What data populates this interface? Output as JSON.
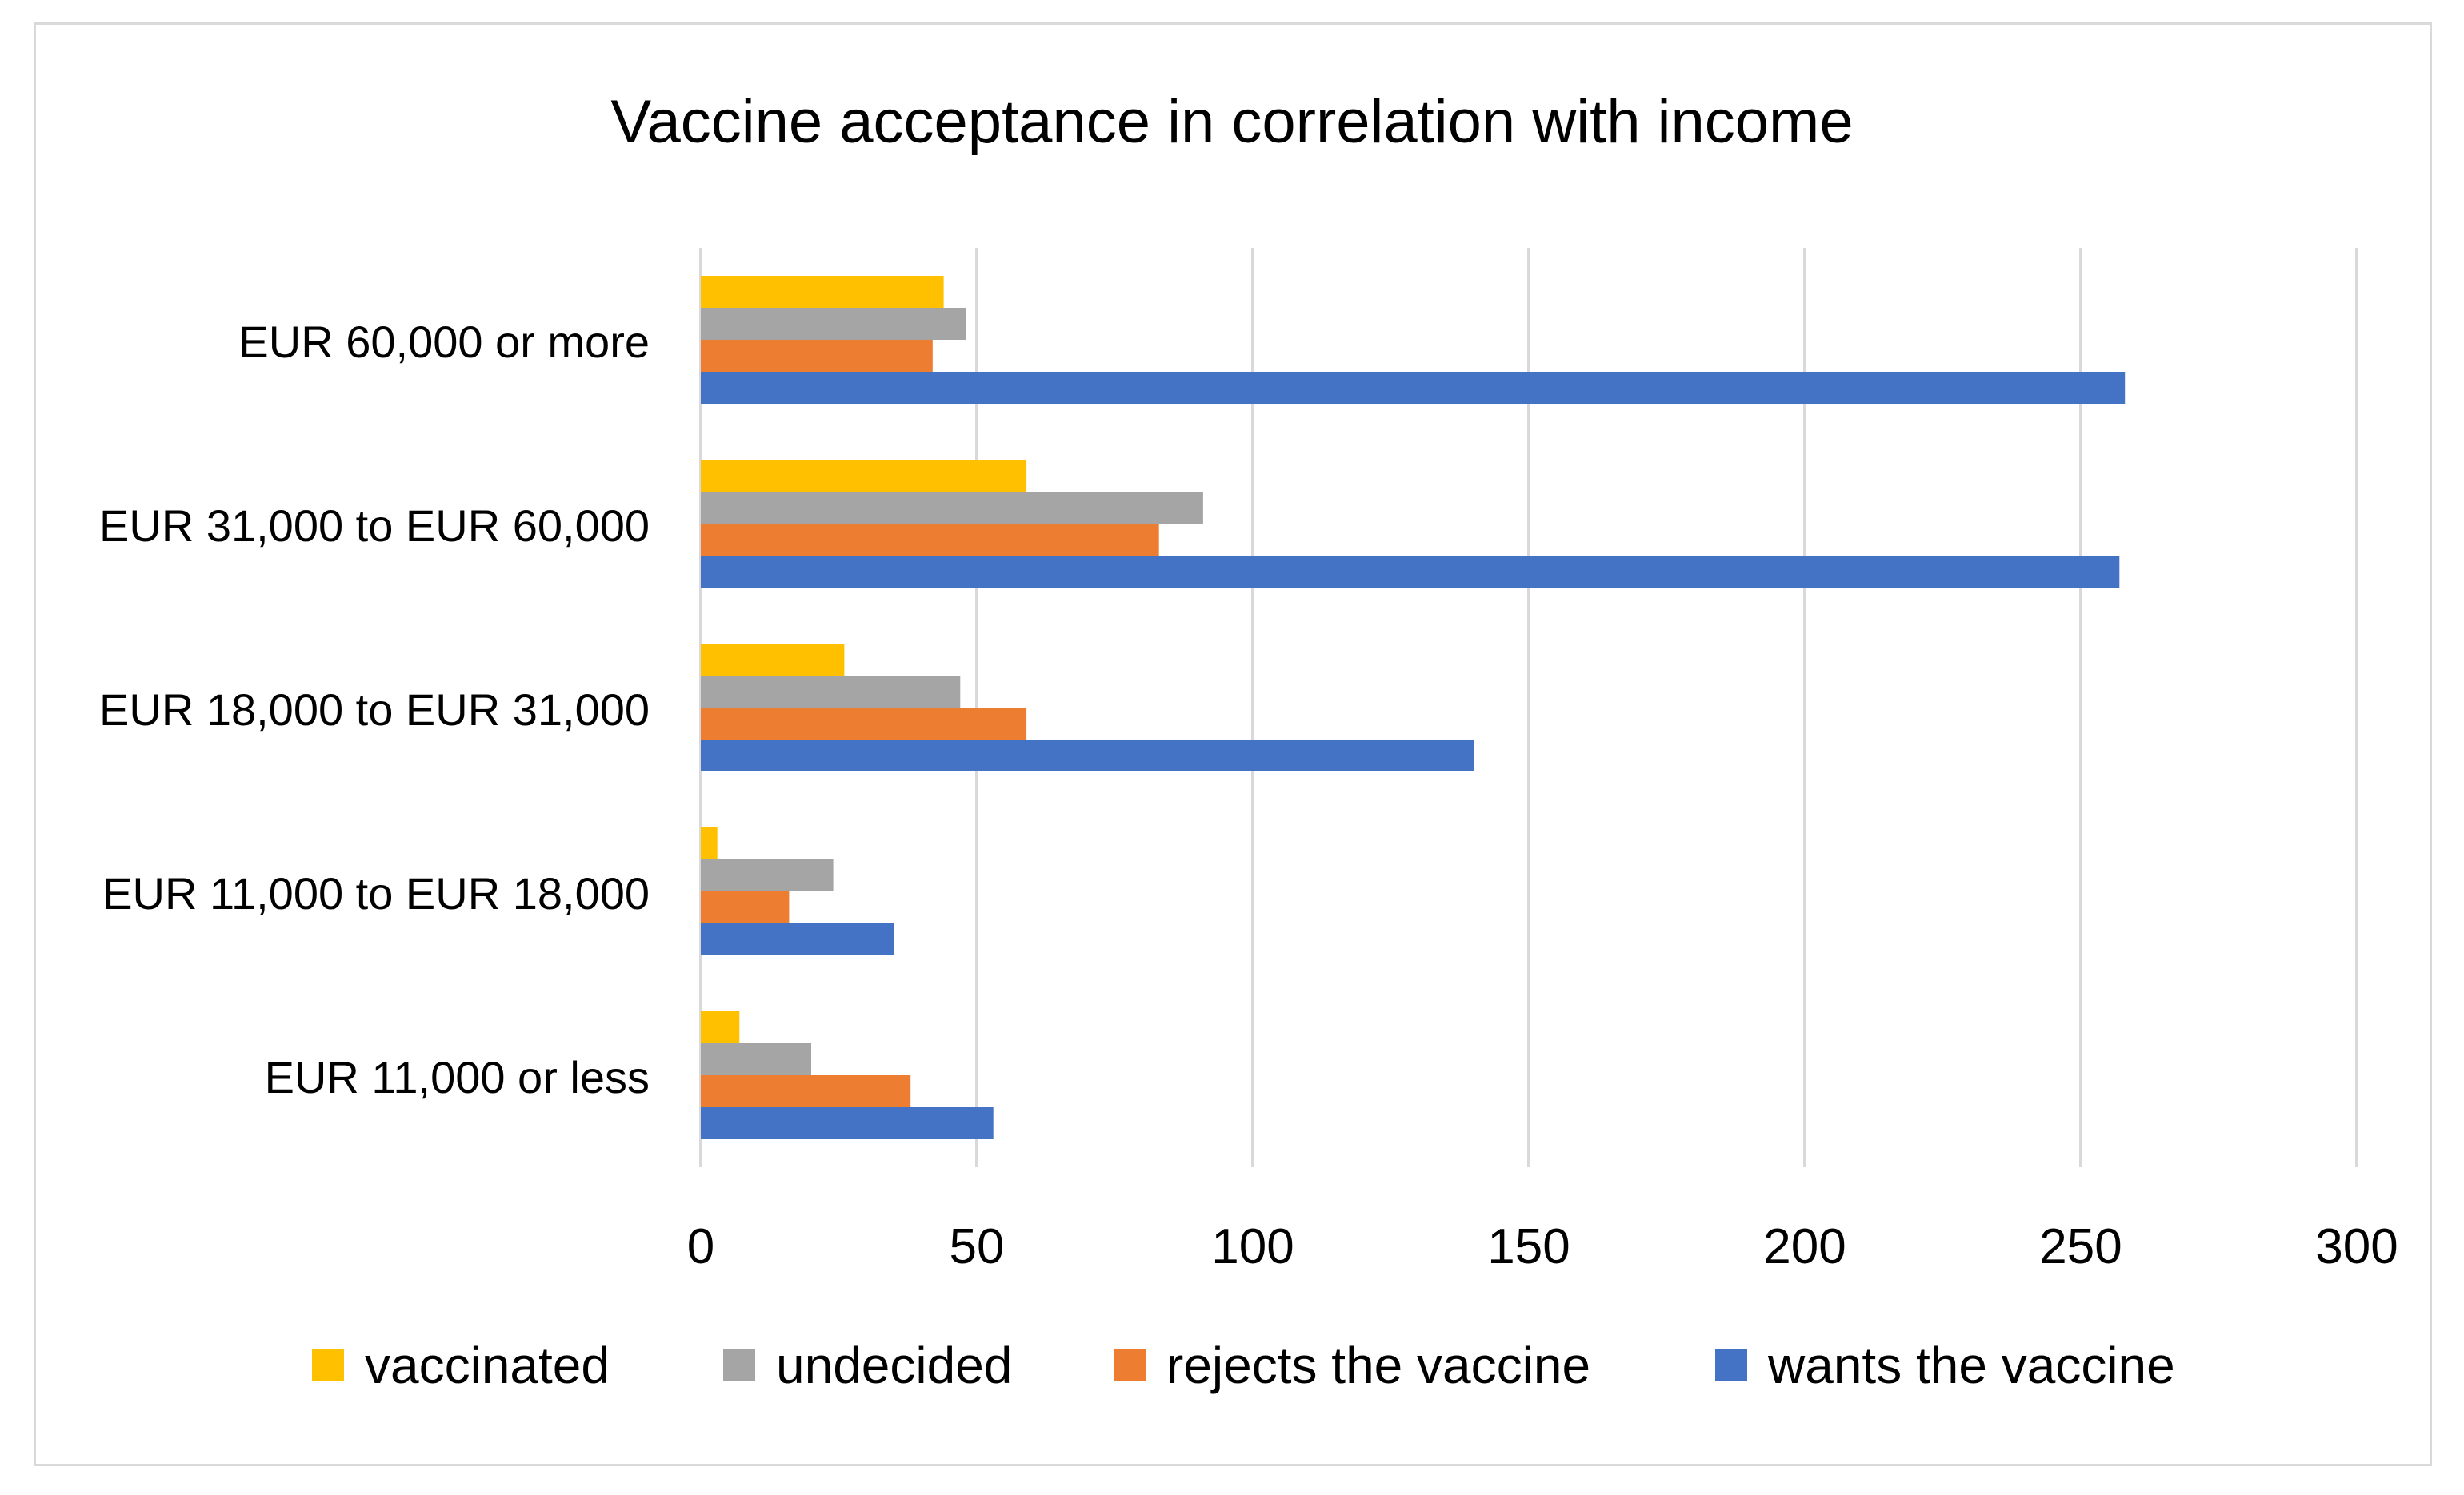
{
  "chart_data": {
    "type": "bar",
    "orientation": "horizontal",
    "title": "Vaccine acceptance in correlation with income",
    "xlabel": "",
    "ylabel": "",
    "xlim": [
      0,
      300
    ],
    "x_ticks": [
      0,
      50,
      100,
      150,
      200,
      250,
      300
    ],
    "grid": true,
    "legend_position": "bottom",
    "categories": [
      "EUR 60,000 or more",
      "EUR 31,000 to EUR 60,000",
      "EUR 18,000 to EUR 31,000",
      "EUR 11,000 to EUR 18,000",
      "EUR 11,000 or less"
    ],
    "series": [
      {
        "name": "vaccinated",
        "color": "#FFC000",
        "values": [
          44,
          59,
          26,
          3,
          7
        ]
      },
      {
        "name": "undecided",
        "color": "#A5A5A5",
        "values": [
          48,
          91,
          47,
          24,
          20
        ]
      },
      {
        "name": "rejects the vaccine",
        "color": "#ED7D31",
        "values": [
          42,
          83,
          59,
          16,
          38
        ]
      },
      {
        "name": "wants the vaccine",
        "color": "#4472C4",
        "values": [
          258,
          257,
          140,
          35,
          53
        ]
      }
    ]
  }
}
